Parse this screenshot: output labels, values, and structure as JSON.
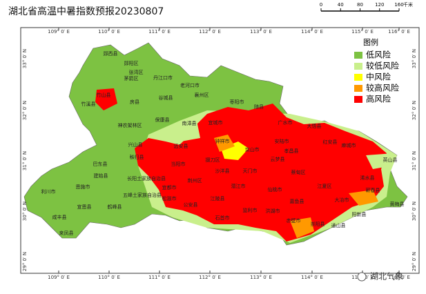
{
  "header": {
    "title": "湖北省高温中暑指数预报20230807"
  },
  "scale_bar": {
    "ticks": [
      "0",
      "40",
      "80",
      "120",
      "160"
    ],
    "unit": "千米"
  },
  "graticule": {
    "longitudes": [
      "109° 0′ E",
      "110° 0′ E",
      "111° 0′ E",
      "112° 0′ E",
      "113° 0′ E",
      "114° 0′ E",
      "115° 0′ E",
      "116° 0′ E"
    ],
    "latitudes": [
      "33° 0′ N",
      "32° 0′ N",
      "31° 0′ N",
      "30° 0′ N",
      "29° 0′ N"
    ]
  },
  "legend": {
    "title": "图例",
    "items": [
      {
        "label": "低风险",
        "color": "#7dc242"
      },
      {
        "label": "较低风险",
        "color": "#c9ef8c"
      },
      {
        "label": "中风险",
        "color": "#ffff00"
      },
      {
        "label": "较高风险",
        "color": "#ff9900"
      },
      {
        "label": "高风险",
        "color": "#ff0000"
      }
    ]
  },
  "places": [
    "郧西县",
    "郧阳区",
    "张湾区",
    "茅箭区",
    "丹江口市",
    "老河口市",
    "竹溪县",
    "竹山县",
    "房县",
    "谷城县",
    "襄州区",
    "枣阳市",
    "保康县",
    "南漳县",
    "宜城市",
    "随县",
    "广水市",
    "大悟县",
    "神农架林区",
    "兴山县",
    "远安县",
    "钟祥市",
    "京山市",
    "安陆市",
    "孝昌县",
    "红安县",
    "麻城市",
    "巴东县",
    "秭归县",
    "当阳市",
    "掇刀区",
    "沙洋县",
    "天门市",
    "云梦县",
    "英山县",
    "恩施市",
    "建始县",
    "利川市",
    "宣恩县",
    "鹤峰县",
    "咸丰县",
    "来凤县",
    "长阳土家族自治县",
    "五峰土家族自治县",
    "宜都市",
    "松滋市",
    "荆州区",
    "江陵县",
    "公安县",
    "石首市",
    "监利市",
    "仙桃市",
    "潜江市",
    "洪湖市",
    "嘉鱼县",
    "赤壁市",
    "崇阳县",
    "通山县",
    "阳新县",
    "大冶市",
    "江夏区",
    "蔡甸区",
    "浠水县",
    "蕲春县",
    "黄梅县"
  ],
  "watermark": "湖北气象"
}
